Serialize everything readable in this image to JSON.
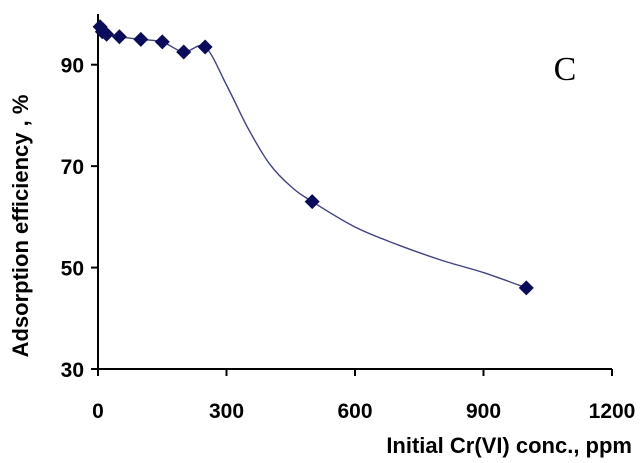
{
  "chart_data": {
    "type": "line",
    "panel_label": "C",
    "title": "",
    "xlabel": "Initial Cr(VI) conc., ppm",
    "ylabel": "Adsorption efficiency , %",
    "xlim": [
      0,
      1200
    ],
    "ylim": [
      30,
      100
    ],
    "x_ticks": [
      0,
      300,
      600,
      900,
      1200
    ],
    "y_ticks": [
      30,
      50,
      70,
      90
    ],
    "grid": false,
    "legend": "none",
    "marker": "diamond",
    "colors": {
      "marker": "#0b0b5e",
      "line": "#3d3f9a",
      "axis": "#000000"
    },
    "series": [
      {
        "x": [
          5,
          10,
          20,
          50,
          100,
          150,
          200,
          250,
          500,
          1000
        ],
        "y": [
          97.5,
          96.5,
          96.0,
          95.5,
          95.0,
          94.5,
          92.5,
          93.5,
          63.0,
          46.0
        ]
      }
    ],
    "trend_line": {
      "x": [
        5,
        10,
        20,
        50,
        100,
        150,
        200,
        250,
        300,
        350,
        400,
        450,
        500,
        600,
        700,
        800,
        900,
        1000
      ],
      "y": [
        97.5,
        96.5,
        96.0,
        95.5,
        95.0,
        94.5,
        92.5,
        93.5,
        86.0,
        77.5,
        70.5,
        66.0,
        63.0,
        58.0,
        54.5,
        51.5,
        49.0,
        46.0
      ]
    }
  }
}
